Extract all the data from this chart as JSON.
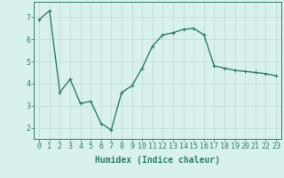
{
  "x": [
    0,
    1,
    2,
    3,
    4,
    5,
    6,
    7,
    8,
    9,
    10,
    11,
    12,
    13,
    14,
    15,
    16,
    17,
    18,
    19,
    20,
    21,
    22,
    23
  ],
  "y": [
    6.9,
    7.3,
    3.6,
    4.2,
    3.1,
    3.2,
    2.2,
    1.9,
    3.6,
    3.9,
    4.7,
    5.7,
    6.2,
    6.3,
    6.45,
    6.5,
    6.2,
    4.8,
    4.7,
    4.6,
    4.55,
    4.5,
    4.45,
    4.35
  ],
  "line_color": "#2d7d6e",
  "marker": "+",
  "marker_size": 3,
  "background_color": "#d8f0ee",
  "grid_color": "#c0deda",
  "xlabel": "Humidex (Indice chaleur)",
  "xlim": [
    -0.5,
    23.5
  ],
  "ylim": [
    1.5,
    7.7
  ],
  "xticks": [
    0,
    1,
    2,
    3,
    4,
    5,
    6,
    7,
    8,
    9,
    10,
    11,
    12,
    13,
    14,
    15,
    16,
    17,
    18,
    19,
    20,
    21,
    22,
    23
  ],
  "yticks": [
    2,
    3,
    4,
    5,
    6,
    7
  ],
  "xlabel_fontsize": 7,
  "tick_fontsize": 6,
  "line_width": 1.0
}
